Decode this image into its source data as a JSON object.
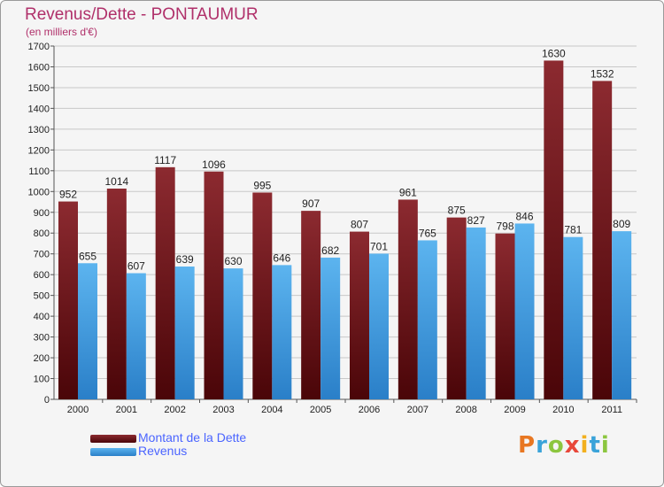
{
  "chart_data": {
    "type": "bar",
    "title": "Revenus/Dette - PONTAUMUR",
    "subtitle": "(en milliers d'€)",
    "categories": [
      "2000",
      "2001",
      "2002",
      "2003",
      "2004",
      "2005",
      "2006",
      "2007",
      "2008",
      "2009",
      "2010",
      "2011"
    ],
    "series": [
      {
        "name": "Montant de la Dette",
        "color": "#6b0f14",
        "values": [
          952,
          1014,
          1117,
          1096,
          995,
          907,
          807,
          961,
          875,
          798,
          1630,
          1532
        ]
      },
      {
        "name": "Revenus",
        "color": "#3d9ae0",
        "values": [
          655,
          607,
          639,
          630,
          646,
          682,
          701,
          765,
          827,
          846,
          781,
          809
        ]
      }
    ],
    "ylim": [
      0,
      1700
    ],
    "ytick_step": 100,
    "xlabel": "",
    "ylabel": "",
    "grid": true,
    "legend": "bottom-left"
  },
  "logo": {
    "letters": [
      {
        "char": "P",
        "color": "#e87722"
      },
      {
        "char": "r",
        "color": "#3aa3d9"
      },
      {
        "char": "o",
        "color": "#8cc63f"
      },
      {
        "char": "x",
        "color": "#e8473a"
      },
      {
        "char": "i",
        "color": "#f2b01e"
      },
      {
        "char": "t",
        "color": "#3aa3d9"
      },
      {
        "char": "i",
        "color": "#8cc63f"
      }
    ]
  }
}
